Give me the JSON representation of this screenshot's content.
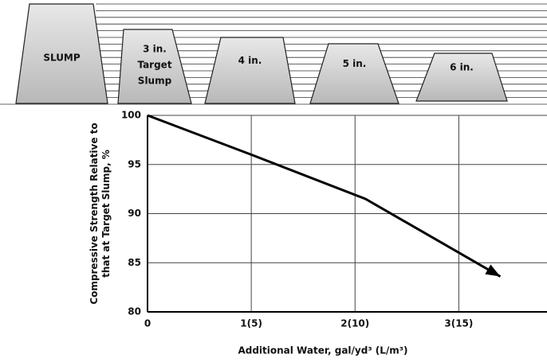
{
  "chart_data": {
    "type": "line",
    "cones": [
      [
        "SLUMP"
      ],
      [
        "3 in.",
        "Target",
        "Slump"
      ],
      [
        "4 in."
      ],
      [
        "5 in."
      ],
      [
        "6 in."
      ]
    ],
    "ylabel": [
      "Compressive Strength Relative to",
      "that at Target Slump, %"
    ],
    "xlabel": "Additional Water, gal/yd³   (L/m³)",
    "x": [
      0,
      1,
      2.1,
      3.4
    ],
    "values": [
      100,
      96,
      91.5,
      83.6
    ],
    "color": "#000000",
    "xlim": [
      0,
      3.85
    ],
    "ylim": [
      80,
      100
    ],
    "xticks": [
      0,
      {
        "value": 1,
        "label": "1(5)"
      },
      {
        "value": 2,
        "label": "2(10)"
      },
      {
        "value": 3,
        "label": "3(15)"
      }
    ],
    "yticks": [
      80,
      85,
      90,
      95,
      100
    ],
    "grid": true
  }
}
